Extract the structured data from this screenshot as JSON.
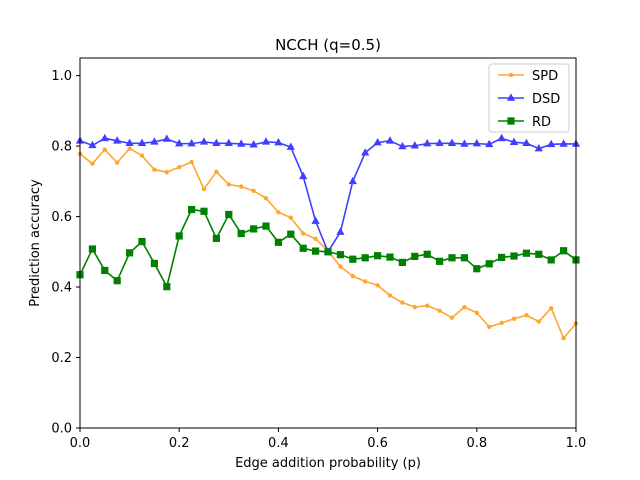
{
  "chart_data": {
    "type": "line",
    "title": "NCCH (q=0.5)",
    "xlabel": "Edge addition probability (p)",
    "ylabel": "Prediction accuracy",
    "xlim": [
      0,
      1
    ],
    "ylim": [
      0,
      1.05
    ],
    "xticks": [
      0,
      0.2,
      0.4,
      0.6,
      0.8,
      1
    ],
    "xtick_labels": [
      "0.0",
      "0.2",
      "0.4",
      "0.6",
      "0.8",
      "1.0"
    ],
    "yticks": [
      0,
      0.2,
      0.4,
      0.6,
      0.8,
      1
    ],
    "ytick_labels": [
      "0.0",
      "0.2",
      "0.4",
      "0.6",
      "0.8",
      "1.0"
    ],
    "grid": false,
    "legend_position": "top-right",
    "x": [
      0,
      0.025,
      0.05,
      0.075,
      0.1,
      0.125,
      0.15,
      0.175,
      0.2,
      0.225,
      0.25,
      0.275,
      0.3,
      0.325,
      0.35,
      0.375,
      0.4,
      0.425,
      0.45,
      0.475,
      0.5,
      0.525,
      0.55,
      0.575,
      0.6,
      0.625,
      0.65,
      0.675,
      0.7,
      0.725,
      0.75,
      0.775,
      0.8,
      0.825,
      0.85,
      0.875,
      0.9,
      0.925,
      0.95,
      0.975,
      1.0
    ],
    "series": [
      {
        "name": "SPD",
        "color": "#ffa533",
        "marker": "circle",
        "values": [
          0.778,
          0.75,
          0.79,
          0.753,
          0.793,
          0.773,
          0.733,
          0.726,
          0.74,
          0.755,
          0.678,
          0.727,
          0.691,
          0.685,
          0.673,
          0.652,
          0.612,
          0.597,
          0.552,
          0.537,
          0.503,
          0.458,
          0.431,
          0.416,
          0.405,
          0.376,
          0.356,
          0.343,
          0.347,
          0.333,
          0.313,
          0.343,
          0.327,
          0.287,
          0.298,
          0.31,
          0.32,
          0.302,
          0.34,
          0.255,
          0.297
        ]
      },
      {
        "name": "DSD",
        "color": "#3f3fff",
        "marker": "triangle",
        "values": [
          0.815,
          0.802,
          0.822,
          0.815,
          0.808,
          0.808,
          0.812,
          0.82,
          0.807,
          0.807,
          0.812,
          0.808,
          0.808,
          0.806,
          0.804,
          0.812,
          0.81,
          0.797,
          0.714,
          0.587,
          0.5,
          0.556,
          0.7,
          0.781,
          0.81,
          0.815,
          0.799,
          0.801,
          0.807,
          0.808,
          0.808,
          0.806,
          0.807,
          0.805,
          0.822,
          0.811,
          0.808,
          0.793,
          0.805,
          0.806,
          0.806
        ]
      },
      {
        "name": "RD",
        "color": "#008000",
        "marker": "square",
        "values": [
          0.435,
          0.508,
          0.447,
          0.418,
          0.497,
          0.529,
          0.467,
          0.401,
          0.545,
          0.62,
          0.615,
          0.538,
          0.606,
          0.552,
          0.565,
          0.573,
          0.527,
          0.55,
          0.51,
          0.502,
          0.5,
          0.492,
          0.479,
          0.483,
          0.489,
          0.485,
          0.47,
          0.487,
          0.493,
          0.473,
          0.483,
          0.483,
          0.452,
          0.466,
          0.484,
          0.488,
          0.496,
          0.493,
          0.477,
          0.503,
          0.477
        ]
      }
    ]
  }
}
